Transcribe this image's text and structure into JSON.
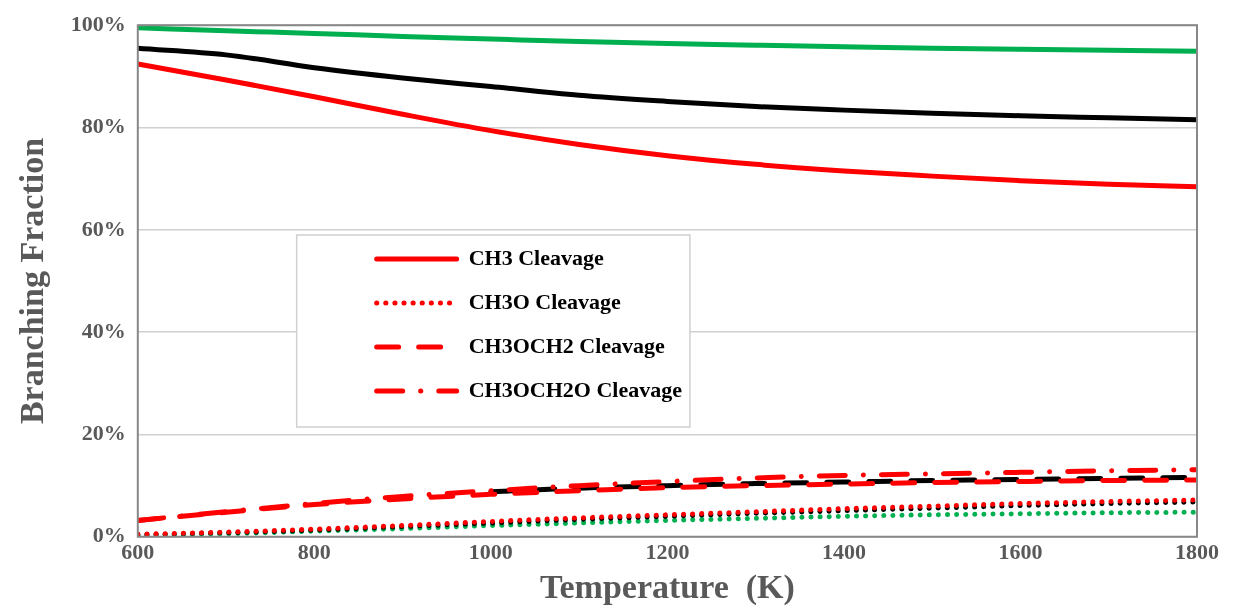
{
  "chart_data": {
    "type": "line",
    "xlabel": "Temperature  (K)",
    "ylabel": "Branching Fraction",
    "x": [
      600,
      700,
      800,
      900,
      1000,
      1100,
      1200,
      1300,
      1400,
      1500,
      1600,
      1700,
      1800
    ],
    "series": [
      {
        "name": "CH3 Cleavage",
        "color": "#ff0000",
        "line_style": "solid",
        "values": [
          92.4,
          89.3,
          86,
          82.6,
          79.4,
          76.7,
          74.5,
          72.8,
          71.5,
          70.5,
          69.6,
          68.9,
          68.4
        ]
      },
      {
        "name": "CH3O Cleavage",
        "color": "#ff0000",
        "line_style": "dotted",
        "values": [
          0.5,
          0.9,
          1.5,
          2.2,
          3,
          3.7,
          4.3,
          4.9,
          5.5,
          6,
          6.5,
          6.9,
          7.2
        ]
      },
      {
        "name": "CH3OCH2 Cleavage",
        "color": "#ff0000",
        "line_style": "dashed",
        "values": [
          3.2,
          4.8,
          6.3,
          7.4,
          8.3,
          9,
          9.6,
          10,
          10.3,
          10.6,
          10.8,
          11,
          11.1
        ]
      },
      {
        "name": "CH3OCH2O Cleavage",
        "color": "#ff0000",
        "line_style": "dashdot",
        "values": [
          3.2,
          4.9,
          6.5,
          7.9,
          9,
          10,
          10.8,
          11.5,
          12,
          12.3,
          12.6,
          12.9,
          13.1
        ]
      },
      {
        "color": "#000000",
        "line_style": "solid",
        "values": [
          95.5,
          94.2,
          91.7,
          89.7,
          88,
          86.3,
          85.1,
          84.1,
          83.4,
          82.8,
          82.3,
          81.9,
          81.5
        ]
      },
      {
        "color": "#000000",
        "line_style": "dotted",
        "values": [
          0.4,
          0.8,
          1.3,
          2,
          2.7,
          3.4,
          4,
          4.6,
          5.1,
          5.6,
          6.1,
          6.5,
          6.8
        ]
      },
      {
        "color": "#000000",
        "line_style": "dashed",
        "values": [
          null,
          null,
          null,
          null,
          8.8,
          9.5,
          10,
          10.4,
          10.7,
          11,
          11.2,
          11.4,
          11.6
        ]
      },
      {
        "color": "#00b050",
        "line_style": "solid",
        "values": [
          99.5,
          98.9,
          98.4,
          97.8,
          97.3,
          96.8,
          96.4,
          96.1,
          95.8,
          95.5,
          95.3,
          95.1,
          94.9
        ]
      },
      {
        "color": "#00b050",
        "line_style": "dotted",
        "values": [
          0.3,
          0.6,
          1.1,
          1.6,
          2.2,
          2.7,
          3.2,
          3.6,
          4,
          4.3,
          4.5,
          4.7,
          4.8
        ]
      }
    ],
    "xlim": [
      600,
      1800
    ],
    "xticks": [
      600,
      800,
      1000,
      1200,
      1400,
      1600,
      1800
    ],
    "ylim": [
      0,
      100
    ],
    "yticks": [
      {
        "value": 0,
        "label": "0%"
      },
      {
        "value": 20,
        "label": "20%"
      },
      {
        "value": 40,
        "label": "40%"
      },
      {
        "value": 60,
        "label": "60%"
      },
      {
        "value": 80,
        "label": "80%"
      },
      {
        "value": 100,
        "label": "100%"
      }
    ],
    "grid": "y",
    "legend": "left",
    "marker": "none"
  }
}
